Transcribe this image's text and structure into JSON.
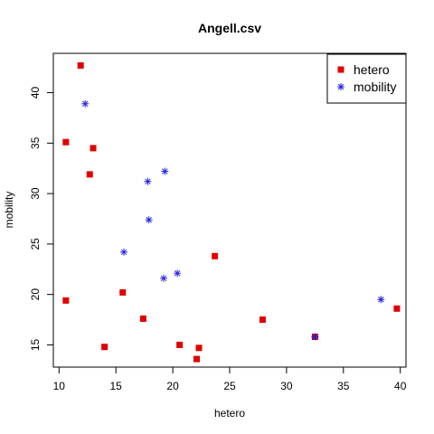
{
  "chart_data": {
    "type": "scatter",
    "title": "Angell.csv",
    "xlabel": "hetero",
    "ylabel": "mobility",
    "xlim": [
      9.5,
      40.5
    ],
    "ylim": [
      12.8,
      43.9
    ],
    "xticks": [
      10,
      15,
      20,
      25,
      30,
      35,
      40
    ],
    "yticks": [
      15,
      20,
      25,
      30,
      35,
      40
    ],
    "grid": false,
    "legend_position": "top-right",
    "series": [
      {
        "name": "hetero",
        "marker": "filled-square",
        "color": "#e00000",
        "points": [
          [
            11.9,
            42.7
          ],
          [
            10.6,
            35.1
          ],
          [
            13.0,
            34.5
          ],
          [
            12.7,
            31.9
          ],
          [
            23.7,
            23.8
          ],
          [
            10.6,
            19.4
          ],
          [
            15.6,
            20.2
          ],
          [
            17.4,
            17.6
          ],
          [
            27.9,
            17.5
          ],
          [
            39.7,
            18.6
          ],
          [
            32.5,
            15.8
          ],
          [
            14.0,
            14.8
          ],
          [
            20.6,
            15.0
          ],
          [
            22.3,
            14.7
          ],
          [
            22.1,
            13.6
          ]
        ]
      },
      {
        "name": "mobility",
        "marker": "asterisk",
        "color": "#2222dd",
        "points": [
          [
            12.3,
            38.9
          ],
          [
            19.3,
            32.2
          ],
          [
            17.8,
            31.2
          ],
          [
            17.9,
            27.4
          ],
          [
            15.7,
            24.2
          ],
          [
            19.2,
            21.6
          ],
          [
            20.4,
            22.1
          ],
          [
            38.3,
            19.5
          ],
          [
            32.5,
            15.8
          ]
        ]
      }
    ]
  }
}
